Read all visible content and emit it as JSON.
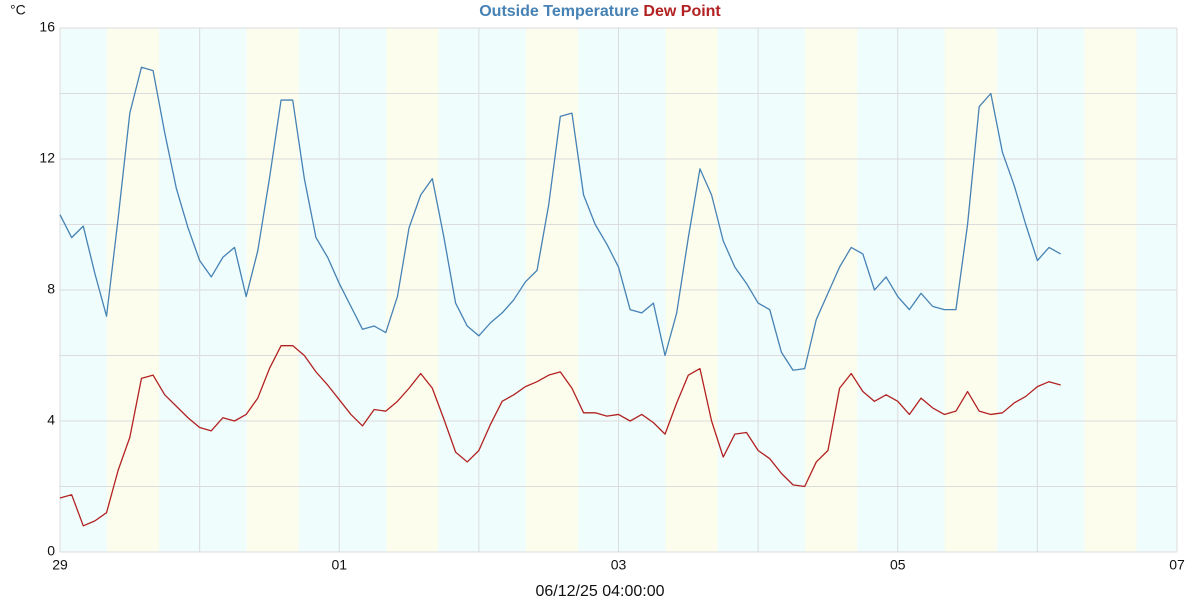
{
  "chart_data": {
    "type": "line",
    "ylabel": "°C",
    "xlabel": "06/12/25 04:00:00",
    "x": [
      0,
      2,
      4,
      6,
      8,
      10,
      12,
      14,
      16,
      18,
      20,
      22,
      24,
      26,
      28,
      30,
      32,
      34,
      36,
      38,
      40,
      42,
      44,
      46,
      48,
      50,
      52,
      54,
      56,
      58,
      60,
      62,
      64,
      66,
      68,
      70,
      72,
      74,
      76,
      78,
      80,
      82,
      84,
      86,
      88,
      90,
      92,
      94,
      96,
      98,
      100,
      102,
      104,
      106,
      108,
      110,
      112,
      114,
      116,
      118,
      120,
      122,
      124,
      126,
      128,
      130,
      132,
      134,
      136,
      138,
      140,
      142,
      144,
      146,
      148,
      150,
      152,
      154,
      156,
      158,
      160,
      162,
      164,
      166,
      168,
      170,
      172
    ],
    "series": [
      {
        "name": "Outside Temperature",
        "color": "#4682b4",
        "values": [
          10.3,
          9.6,
          9.95,
          8.5,
          7.2,
          10.2,
          13.4,
          14.8,
          14.7,
          12.8,
          11.1,
          9.9,
          8.9,
          8.4,
          9.0,
          9.3,
          7.8,
          9.2,
          11.4,
          13.8,
          13.8,
          11.4,
          9.6,
          9.0,
          8.2,
          7.5,
          6.8,
          6.9,
          6.7,
          7.8,
          9.9,
          10.9,
          11.4,
          9.6,
          7.6,
          6.9,
          6.6,
          7.0,
          7.3,
          7.7,
          8.25,
          8.6,
          10.6,
          13.3,
          13.4,
          10.9,
          10.0,
          9.4,
          8.7,
          7.4,
          7.3,
          7.6,
          6.0,
          7.3,
          9.6,
          11.7,
          10.9,
          9.5,
          8.7,
          8.2,
          7.6,
          7.4,
          6.1,
          5.55,
          5.6,
          7.1,
          7.9,
          8.7,
          9.3,
          9.1,
          8.0,
          8.4,
          7.8,
          7.4,
          7.9,
          7.5,
          7.4,
          7.4,
          10.0,
          13.6,
          14.0,
          12.2,
          11.2,
          10.0,
          8.9,
          9.3,
          9.1
        ]
      },
      {
        "name": "Dew Point",
        "color": "#b22222",
        "values": [
          1.65,
          1.75,
          0.8,
          0.95,
          1.2,
          2.5,
          3.5,
          5.3,
          5.4,
          4.8,
          4.45,
          4.1,
          3.8,
          3.7,
          4.1,
          4.0,
          4.2,
          4.7,
          5.6,
          6.3,
          6.3,
          6.0,
          5.5,
          5.1,
          4.65,
          4.2,
          3.85,
          4.35,
          4.3,
          4.6,
          5.0,
          5.45,
          5.0,
          4.05,
          3.05,
          2.75,
          3.1,
          3.9,
          4.6,
          4.8,
          5.05,
          5.2,
          5.4,
          5.5,
          5.0,
          4.25,
          4.25,
          4.15,
          4.2,
          4.0,
          4.2,
          3.95,
          3.6,
          4.55,
          5.4,
          5.6,
          4.0,
          2.9,
          3.6,
          3.65,
          3.1,
          2.85,
          2.4,
          2.05,
          2.0,
          2.75,
          3.1,
          5.0,
          5.45,
          4.9,
          4.6,
          4.8,
          4.6,
          4.2,
          4.7,
          4.4,
          4.2,
          4.3,
          4.9,
          4.3,
          4.2,
          4.25,
          4.55,
          4.75,
          5.05,
          5.2,
          5.1
        ]
      }
    ],
    "xlim": [
      0,
      192
    ],
    "xticks": [
      {
        "value": 0,
        "label": "29"
      },
      {
        "value": 48,
        "label": "01"
      },
      {
        "value": 96,
        "label": "03"
      },
      {
        "value": 144,
        "label": "05"
      },
      {
        "value": 192,
        "label": "07"
      }
    ],
    "xticks_minor": [
      24,
      72,
      120,
      168
    ],
    "ylim": [
      0,
      16
    ],
    "yticks": [
      0,
      4,
      8,
      12,
      16
    ],
    "yticks_minor": [
      2,
      6,
      10,
      14
    ],
    "grid": true
  }
}
